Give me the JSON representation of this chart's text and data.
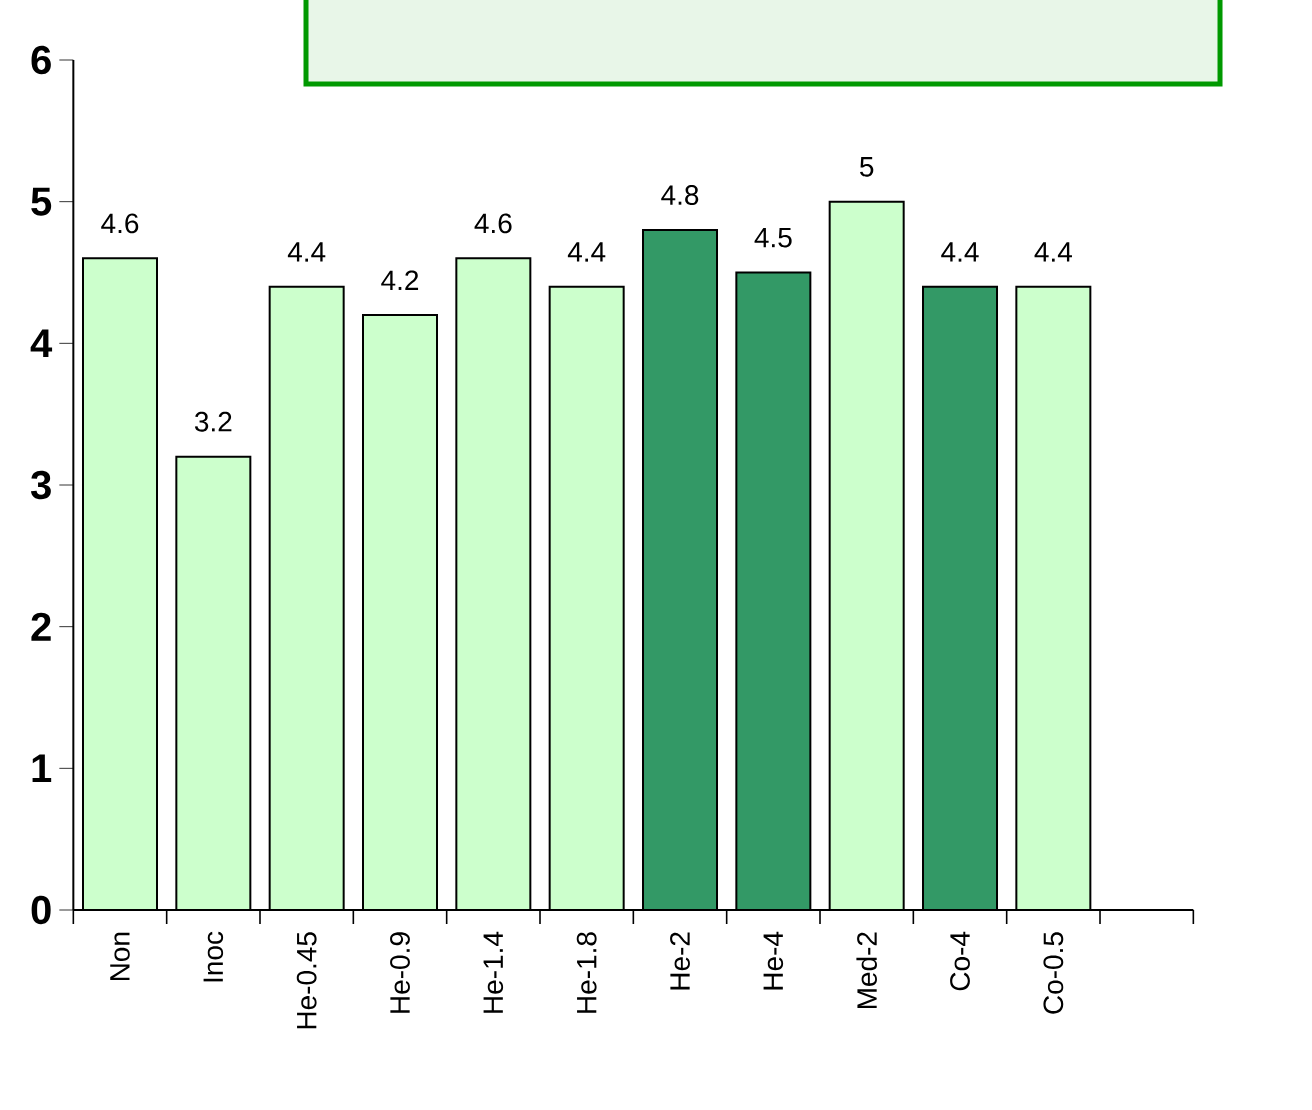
{
  "chart_data": {
    "type": "bar",
    "categories": [
      "Non",
      "Inoc",
      "He-0.45",
      "He-0.9",
      "He-1.4",
      "He-1.8",
      "He-2",
      "He-4",
      "Med-2",
      "Co-4",
      "Co-0.5",
      null
    ],
    "values": [
      4.6,
      3.2,
      4.4,
      4.2,
      4.6,
      4.4,
      4.8,
      4.5,
      5,
      4.4,
      4.4,
      null
    ],
    "colors": [
      "#ccffcc",
      "#ccffcc",
      "#ccffcc",
      "#ccffcc",
      "#ccffcc",
      "#ccffcc",
      "#339966",
      "#339966",
      "#ccffcc",
      "#339966",
      "#ccffcc",
      "#ccffcc"
    ],
    "ylim": [
      0,
      6
    ],
    "yticks": [
      0,
      1,
      2,
      3,
      4,
      5,
      6
    ],
    "data_labels": true
  }
}
